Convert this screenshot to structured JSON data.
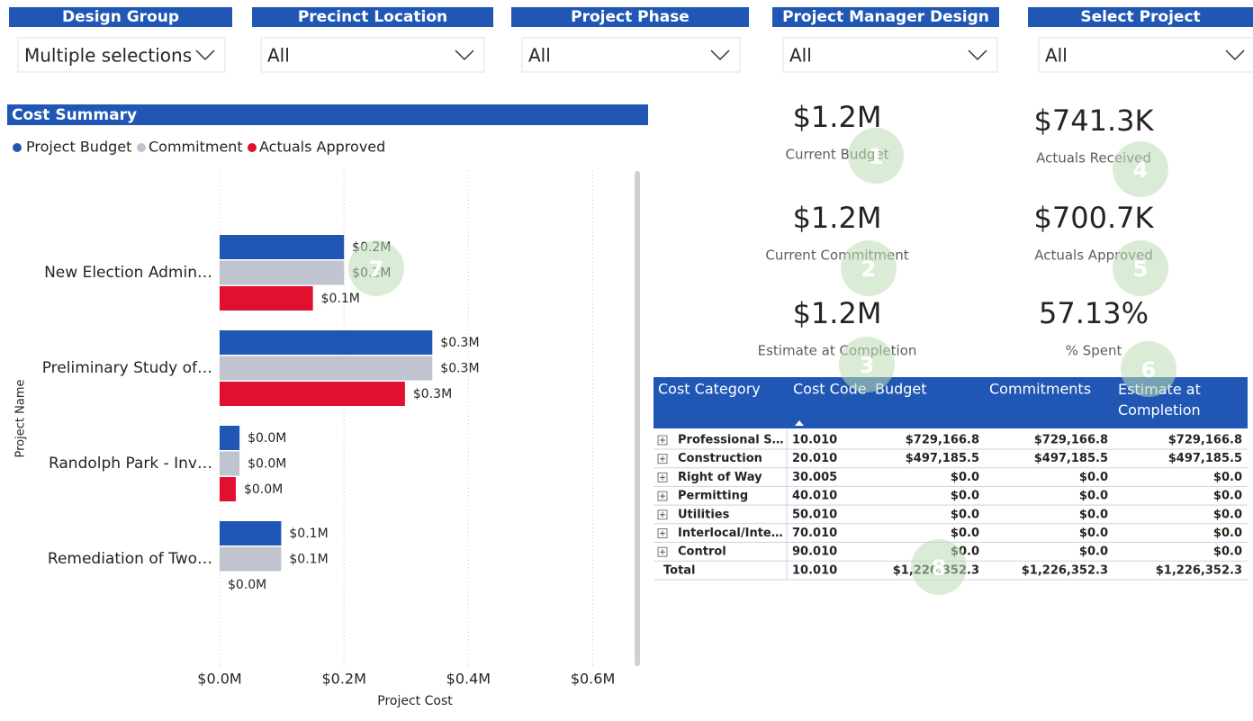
{
  "filters": [
    {
      "label": "Design Group",
      "value": "Multiple selections"
    },
    {
      "label": "Precinct Location",
      "value": "All"
    },
    {
      "label": "Project Phase",
      "value": "All"
    },
    {
      "label": "Project Manager Design",
      "value": "All"
    },
    {
      "label": "Select Project",
      "value": "All"
    }
  ],
  "chart_data": {
    "type": "hbar",
    "title": "Cost Summary",
    "x_label": "Project Cost",
    "y_label": "Project Name",
    "categories": [
      "New Election Admin…",
      "Preliminary Study of…",
      "Randolph Park - Inv…",
      "Remediation of Two…"
    ],
    "series": [
      {
        "name": "Project Budget",
        "color": "#2157b4",
        "values": [
          0.2,
          0.342,
          0.032,
          0.099
        ],
        "value_labels": [
          "$0.2M",
          "$0.3M",
          "$0.0M",
          "$0.1M"
        ]
      },
      {
        "name": "Commitment",
        "color": "#c0c4cf",
        "values": [
          0.2,
          0.342,
          0.032,
          0.099
        ],
        "value_labels": [
          "$0.2M",
          "$0.3M",
          "$0.0M",
          "$0.1M"
        ]
      },
      {
        "name": "Actuals Approved",
        "color": "#e0102f",
        "values": [
          0.15,
          0.298,
          0.026,
          0
        ],
        "value_labels": [
          "$0.1M",
          "$0.3M",
          "$0.0M",
          "$0.0M"
        ]
      }
    ],
    "xlim": [
      0,
      0.66
    ],
    "xticks": [
      {
        "value": 0,
        "label": "$0.0M"
      },
      {
        "value": 0.2,
        "label": "$0.2M"
      },
      {
        "value": 0.4,
        "label": "$0.4M"
      },
      {
        "value": 0.6,
        "label": "$0.6M"
      }
    ],
    "grid": true,
    "legend": "top-left"
  },
  "kpis": [
    {
      "value": "$1.2M",
      "label": "Current Budget"
    },
    {
      "value": "$1.2M",
      "label": "Current Commitment"
    },
    {
      "value": "$1.2M",
      "label": "Estimate at Completion"
    },
    {
      "value": "$741.3K",
      "label": "Actuals Received"
    },
    {
      "value": "$700.7K",
      "label": "Actuals Approved"
    },
    {
      "value": "57.13%",
      "label": "% Spent"
    }
  ],
  "table": {
    "header": [
      "Cost Category",
      "Cost Code",
      "Budget",
      "Commitments",
      "Estimate at Completion"
    ],
    "rows": [
      [
        "Professional S…",
        "10.010",
        "$729,166.8",
        "$729,166.8",
        "$729,166.8"
      ],
      [
        "Construction",
        "20.010",
        "$497,185.5",
        "$497,185.5",
        "$497,185.5"
      ],
      [
        "Right of Way",
        "30.005",
        "$0.0",
        "$0.0",
        "$0.0"
      ],
      [
        "Permitting",
        "40.010",
        "$0.0",
        "$0.0",
        "$0.0"
      ],
      [
        "Utilities",
        "50.010",
        "$0.0",
        "$0.0",
        "$0.0"
      ],
      [
        "Interlocal/Inte…",
        "70.010",
        "$0.0",
        "$0.0",
        "$0.0"
      ],
      [
        "Control",
        "90.010",
        "$0.0",
        "$0.0",
        "$0.0"
      ]
    ],
    "total": [
      "Total",
      "10.010",
      "$1,226,352.3",
      "$1,226,352.3",
      "$1,226,352.3"
    ]
  },
  "badges": [
    "1",
    "2",
    "3",
    "4",
    "5",
    "6",
    "7",
    "8"
  ]
}
